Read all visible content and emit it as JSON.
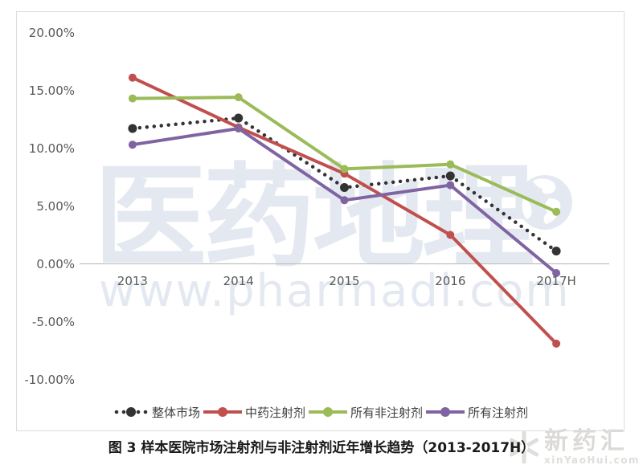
{
  "caption": "图 3 样本医院市场注射剂与非注射剂近年增长趋势（2013-2017H）",
  "watermarks": {
    "pharmadl_cn": "医药地理",
    "pharmadl_url": "www.pharmadl.com",
    "xinyaohui_cn": "新药汇",
    "xinyaohui_url": "xinYaoHui.com"
  },
  "chart_data": {
    "type": "line",
    "title": "",
    "xlabel": "",
    "ylabel": "",
    "categories": [
      "2013",
      "2014",
      "2015",
      "2016",
      "2017H"
    ],
    "series": [
      {
        "name": "整体市场",
        "values": [
          11.7,
          12.6,
          6.6,
          7.6,
          1.1
        ],
        "color": "#333333",
        "style": "dotted"
      },
      {
        "name": "中药注射剂",
        "values": [
          16.1,
          11.8,
          7.8,
          2.5,
          -6.9
        ],
        "color": "#C0504D",
        "style": "solid"
      },
      {
        "name": "所有非注射剂",
        "values": [
          14.3,
          14.4,
          8.2,
          8.6,
          4.5
        ],
        "color": "#9BBB59",
        "style": "solid"
      },
      {
        "name": "所有注射剂",
        "values": [
          10.3,
          11.7,
          5.5,
          6.8,
          -0.8
        ],
        "color": "#8064A2",
        "style": "solid"
      }
    ],
    "y_ticks": {
      "labels": [
        "20.00%",
        "15.00%",
        "10.00%",
        "5.00%",
        "0.00%",
        "-5.00%",
        "-10.00%"
      ],
      "values": [
        20,
        15,
        10,
        5,
        0,
        -5,
        -10
      ]
    },
    "ylim": [
      -10,
      20
    ],
    "grid": "zero-axis-only",
    "legend_position": "bottom",
    "colors": {
      "axis_line": "#BFBFBF",
      "tick_label": "#595959",
      "frame_border": "#DCDCDC",
      "watermark_blue": "#E4E9F1",
      "watermark_gray": "#DCDAD7"
    }
  }
}
